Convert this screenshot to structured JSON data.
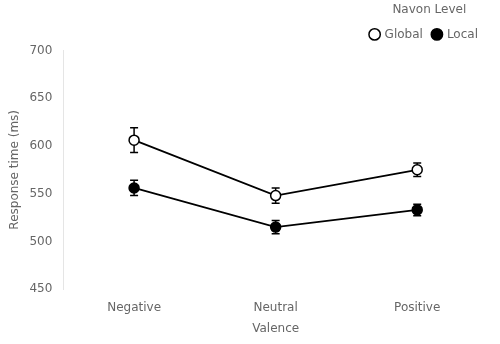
{
  "chart_data": {
    "type": "line",
    "categories": [
      "Negative",
      "Neutral",
      "Positive"
    ],
    "series": [
      {
        "name": "Global",
        "color": "black",
        "marker": "circle-open",
        "values": [
          606,
          548,
          575
        ],
        "errors": [
          13,
          8,
          7
        ]
      },
      {
        "name": "Local",
        "color": "black",
        "marker": "circle",
        "values": [
          556,
          515,
          533
        ],
        "errors": [
          8,
          7,
          6
        ]
      }
    ],
    "xlabel": "Valence",
    "ylabel": "Response time (ms)",
    "ylim": [
      450,
      700
    ],
    "yticks": [
      450,
      500,
      550,
      600,
      650,
      700
    ],
    "legend_title": "Navon Level",
    "legend": "upper right",
    "grid": false
  }
}
